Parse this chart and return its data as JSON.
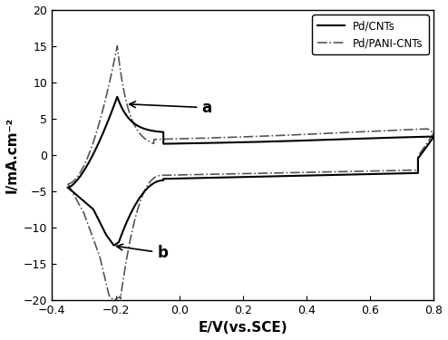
{
  "title": "",
  "xlabel": "E/V(vs.SCE)",
  "ylabel": "I/mA.cm⁻²",
  "xlim": [
    -0.4,
    0.8
  ],
  "ylim": [
    -20,
    20
  ],
  "xticks": [
    -0.4,
    -0.2,
    0.0,
    0.2,
    0.4,
    0.6,
    0.8
  ],
  "yticks": [
    -20,
    -15,
    -10,
    -5,
    0,
    5,
    10,
    15,
    20
  ],
  "legend": [
    "Pd/CNTs",
    "Pd/PANI-CNTs"
  ],
  "line1_color": "#000000",
  "line2_color": "#555555",
  "background_color": "#ffffff"
}
